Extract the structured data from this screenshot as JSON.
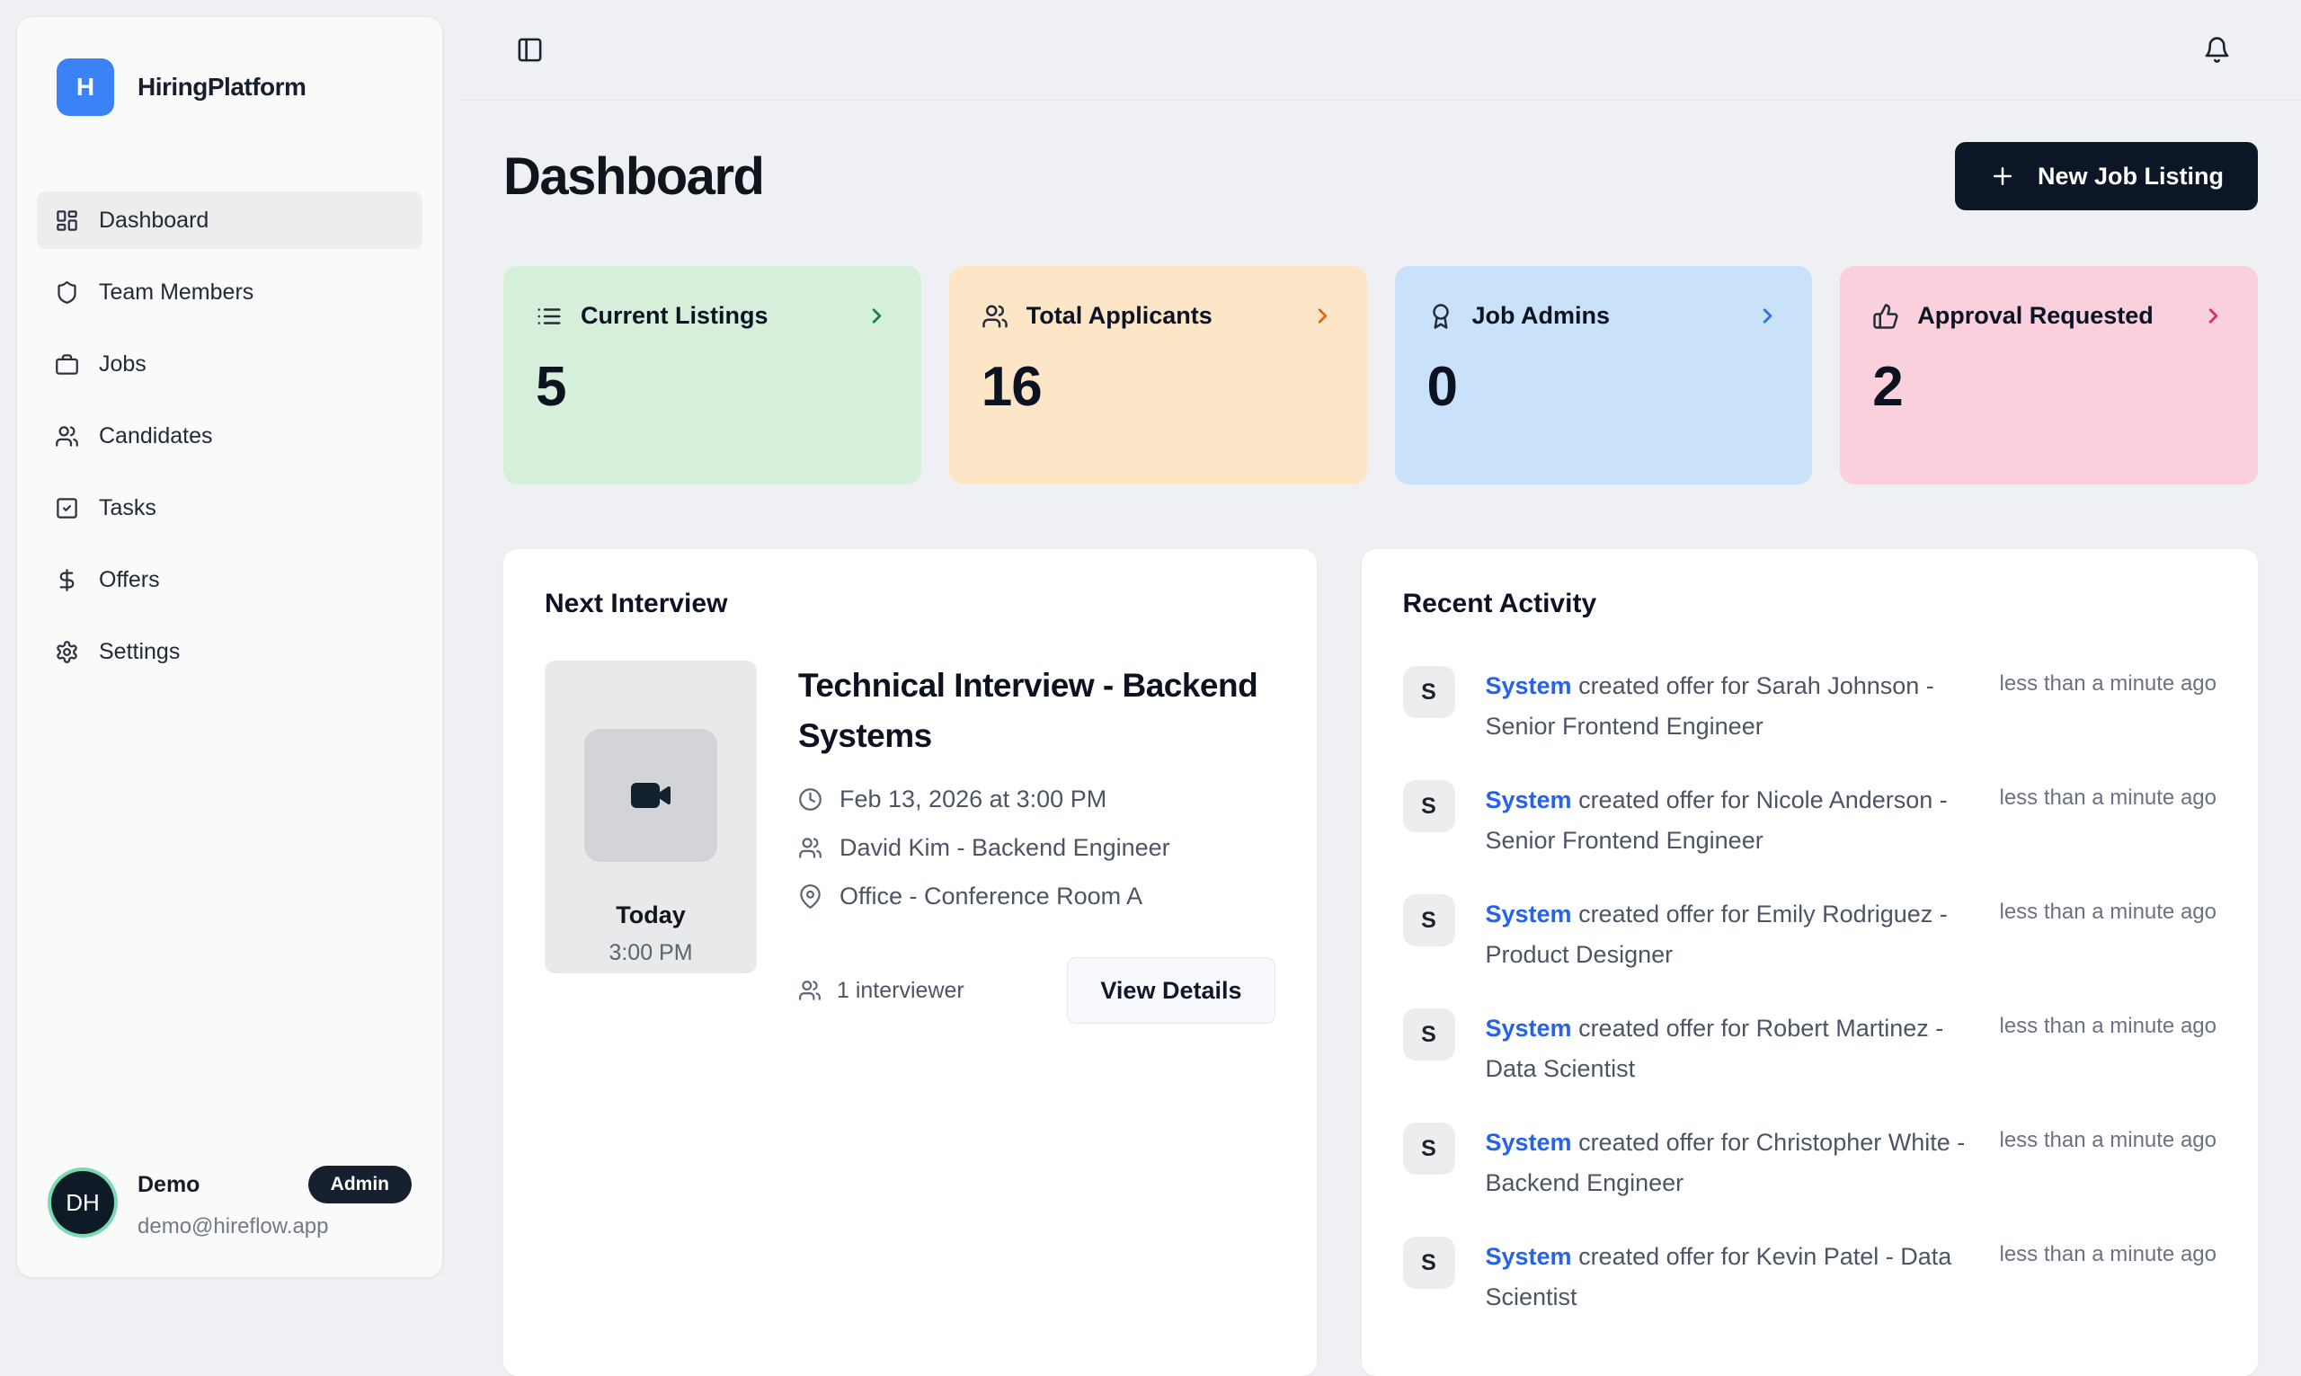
{
  "app": {
    "name": "HiringPlatform",
    "logo_letter": "H"
  },
  "sidebar": {
    "items": [
      {
        "label": "Dashboard",
        "icon": "layout-dashboard-icon",
        "active": true
      },
      {
        "label": "Team Members",
        "icon": "shield-icon",
        "active": false
      },
      {
        "label": "Jobs",
        "icon": "briefcase-icon",
        "active": false
      },
      {
        "label": "Candidates",
        "icon": "users-icon",
        "active": false
      },
      {
        "label": "Tasks",
        "icon": "check-square-icon",
        "active": false
      },
      {
        "label": "Offers",
        "icon": "dollar-icon",
        "active": false
      },
      {
        "label": "Settings",
        "icon": "gear-icon",
        "active": false
      }
    ],
    "user": {
      "initials": "DH",
      "name": "Demo",
      "role_badge": "Admin",
      "email": "demo@hireflow.app"
    }
  },
  "header": {
    "title": "Dashboard",
    "new_job_button": "New Job Listing"
  },
  "stats": [
    {
      "label": "Current Listings",
      "value": "5",
      "icon": "list-icon",
      "bg": "#d6efdb",
      "accent": "#1d7f4b"
    },
    {
      "label": "Total Applicants",
      "value": "16",
      "icon": "users-icon",
      "bg": "#fde5c7",
      "accent": "#e2680e"
    },
    {
      "label": "Job Admins",
      "value": "0",
      "icon": "award-icon",
      "bg": "#c9e2f9",
      "accent": "#2f6fe4"
    },
    {
      "label": "Approval Requested",
      "value": "2",
      "icon": "thumbs-up-icon",
      "bg": "#f9d0dc",
      "accent": "#d92d5e"
    }
  ],
  "next_interview": {
    "section_title": "Next Interview",
    "day_label": "Today",
    "time_label": "3:00 PM",
    "title": "Technical Interview - Backend Systems",
    "datetime": "Feb 13, 2026 at 3:00 PM",
    "person": "David Kim - Backend Engineer",
    "location": "Office - Conference Room A",
    "interviewer_count": "1 interviewer",
    "view_details_label": "View Details"
  },
  "recent_activity": {
    "section_title": "Recent Activity",
    "items": [
      {
        "avatar": "S",
        "actor": "System",
        "text": "created offer for Sarah Johnson - Senior Frontend Engineer",
        "time": "less than a minute ago"
      },
      {
        "avatar": "S",
        "actor": "System",
        "text": "created offer for Nicole Anderson - Senior Frontend Engineer",
        "time": "less than a minute ago"
      },
      {
        "avatar": "S",
        "actor": "System",
        "text": "created offer for Emily Rodriguez - Product Designer",
        "time": "less than a minute ago"
      },
      {
        "avatar": "S",
        "actor": "System",
        "text": "created offer for Robert Martinez - Data Scientist",
        "time": "less than a minute ago"
      },
      {
        "avatar": "S",
        "actor": "System",
        "text": "created offer for Christopher White - Backend Engineer",
        "time": "less than a minute ago"
      },
      {
        "avatar": "S",
        "actor": "System",
        "text": "created offer for Kevin Patel - Data Scientist",
        "time": "less than a minute ago"
      }
    ]
  }
}
